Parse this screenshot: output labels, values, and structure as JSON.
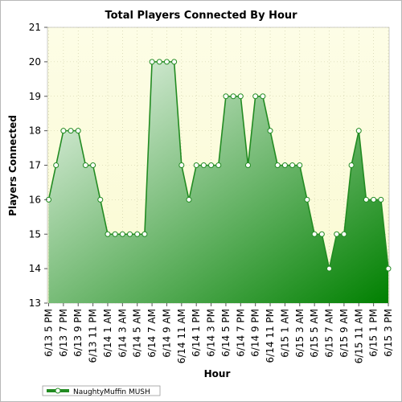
{
  "chart_data": {
    "type": "area",
    "title": "Total Players Connected By Hour",
    "xlabel": "Hour",
    "ylabel": "Players Connected",
    "ylim": [
      13,
      21
    ],
    "yticks": [
      13,
      14,
      15,
      16,
      17,
      18,
      19,
      20,
      21
    ],
    "grid": true,
    "legend_position": "bottom-left",
    "x_tick_labels": [
      "6/13 5 PM",
      "6/13 7 PM",
      "6/13 9 PM",
      "6/13 11 PM",
      "6/14 1 AM",
      "6/14 3 AM",
      "6/14 5 AM",
      "6/14 7 AM",
      "6/14 9 AM",
      "6/14 11 AM",
      "6/14 1 PM",
      "6/14 3 PM",
      "6/14 5 PM",
      "6/14 7 PM",
      "6/14 9 PM",
      "6/14 11 PM",
      "6/15 1 AM",
      "6/15 3 AM",
      "6/15 5 AM",
      "6/15 7 AM",
      "6/15 9 AM",
      "6/15 11 AM",
      "6/15 1 PM",
      "6/15 3 PM"
    ],
    "x_tick_every": 2,
    "series": [
      {
        "name": "NaughtyMuffin MUSH",
        "color": "#228b22",
        "fill_light": "#f0f8f0",
        "fill_dark": "#008000",
        "values": [
          16,
          17,
          18,
          18,
          18,
          17,
          17,
          16,
          15,
          15,
          15,
          15,
          15,
          15,
          20,
          20,
          20,
          20,
          17,
          16,
          17,
          17,
          17,
          17,
          19,
          19,
          19,
          17,
          19,
          19,
          18,
          17,
          17,
          17,
          17,
          16,
          15,
          15,
          14,
          15,
          15,
          17,
          18,
          16,
          16,
          16,
          14
        ]
      }
    ],
    "plot_background_top": "#fdfde6",
    "plot_background_bottom": "#fafad2"
  }
}
